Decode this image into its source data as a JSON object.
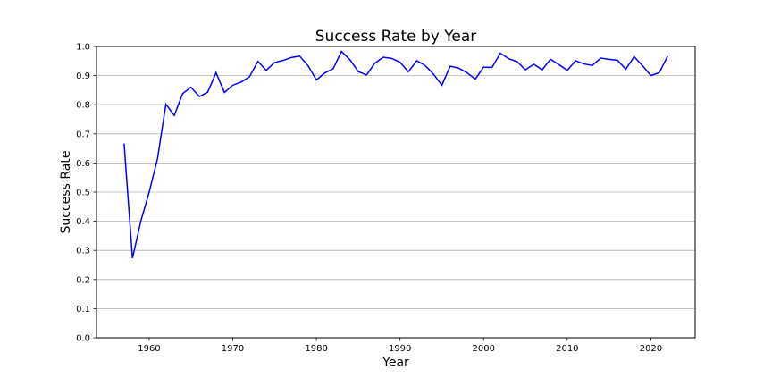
{
  "chart_data": {
    "type": "line",
    "title": "Success Rate by Year",
    "xlabel": "Year",
    "ylabel": "Success Rate",
    "xlim": [
      1953.7,
      2025.3
    ],
    "ylim": [
      0.0,
      1.0
    ],
    "x_ticks": [
      1960,
      1970,
      1980,
      1990,
      2000,
      2010,
      2020
    ],
    "y_ticks": [
      0.0,
      0.1,
      0.2,
      0.3,
      0.4,
      0.5,
      0.6,
      0.7,
      0.8,
      0.9,
      1.0
    ],
    "y_tick_labels": [
      "0.0",
      "0.1",
      "0.2",
      "0.3",
      "0.4",
      "0.5",
      "0.6",
      "0.7",
      "0.8",
      "0.9",
      "1.0"
    ],
    "grid": "y",
    "line_color": "#0000ff",
    "x": [
      1957,
      1958,
      1959,
      1960,
      1961,
      1962,
      1963,
      1964,
      1965,
      1966,
      1967,
      1968,
      1969,
      1970,
      1971,
      1972,
      1973,
      1974,
      1975,
      1976,
      1977,
      1978,
      1979,
      1980,
      1981,
      1982,
      1983,
      1984,
      1985,
      1986,
      1987,
      1988,
      1989,
      1990,
      1991,
      1992,
      1993,
      1994,
      1995,
      1996,
      1997,
      1998,
      1999,
      2000,
      2001,
      2002,
      2003,
      2004,
      2005,
      2006,
      2007,
      2008,
      2009,
      2010,
      2011,
      2012,
      2013,
      2014,
      2015,
      2016,
      2017,
      2018,
      2019,
      2020,
      2021,
      2022
    ],
    "values": [
      0.667,
      0.273,
      0.4,
      0.5,
      0.615,
      0.802,
      0.763,
      0.838,
      0.86,
      0.828,
      0.843,
      0.91,
      0.842,
      0.867,
      0.878,
      0.896,
      0.949,
      0.918,
      0.945,
      0.952,
      0.962,
      0.967,
      0.934,
      0.885,
      0.909,
      0.923,
      0.983,
      0.955,
      0.914,
      0.902,
      0.943,
      0.963,
      0.959,
      0.946,
      0.913,
      0.951,
      0.935,
      0.905,
      0.867,
      0.932,
      0.926,
      0.91,
      0.888,
      0.929,
      0.928,
      0.977,
      0.958,
      0.948,
      0.92,
      0.939,
      0.92,
      0.956,
      0.938,
      0.918,
      0.951,
      0.94,
      0.935,
      0.96,
      0.956,
      0.953,
      0.922,
      0.965,
      0.934,
      0.9,
      0.91,
      0.966
    ]
  }
}
